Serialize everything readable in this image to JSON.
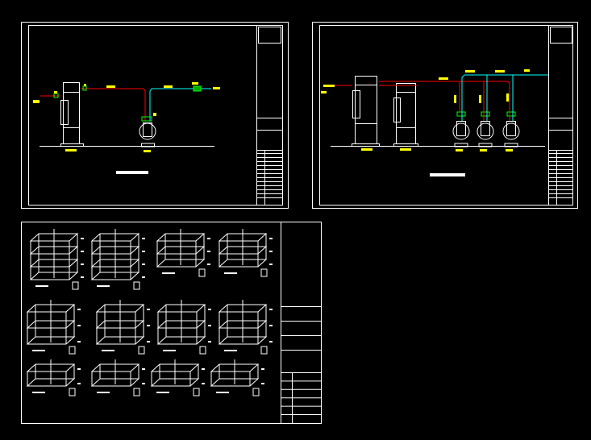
{
  "colors": {
    "background": "#000000",
    "linework": "#ffffff",
    "supply_pipe": "#ff0000",
    "return_pipe": "#00ffff",
    "valve": "#00ff00",
    "annotation": "#ffff00"
  },
  "sheets": [
    {
      "id": "single-unit-schematic",
      "units": 1,
      "pumps": 1
    },
    {
      "id": "dual-unit-schematic",
      "units": 2,
      "pumps": 3
    }
  ],
  "floor_plans": {
    "rows": [
      {
        "frames": [
          4,
          4,
          3,
          3
        ]
      },
      {
        "frames": [
          3,
          3,
          3,
          3
        ]
      },
      {
        "frames": [
          2,
          2,
          2,
          2
        ]
      }
    ],
    "title_block_rows": 6
  }
}
